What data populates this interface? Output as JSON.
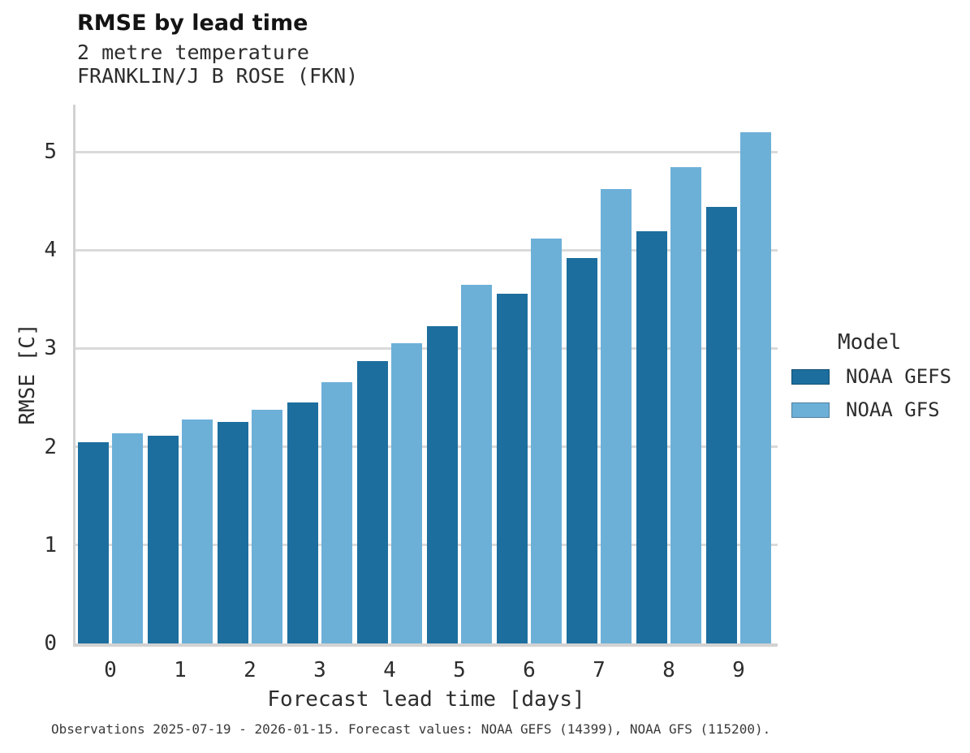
{
  "header": {
    "title": "RMSE by lead time",
    "subtitle_line1": "2 metre temperature",
    "subtitle_line2": "FRANKLIN/J B ROSE (FKN)"
  },
  "legend": {
    "title": "Model"
  },
  "footer": {
    "text": "Observations 2025-07-19 - 2026-01-15. Forecast values: NOAA GEFS (14399), NOAA GFS (115200)."
  },
  "colors": {
    "gefs_bar": "#1c6e9e",
    "gfs_bar": "#6cb0d8",
    "gridline": "#dadada",
    "axis_line": "#d2d2d2",
    "text": "#2d2d2d"
  },
  "chart_data": {
    "type": "bar",
    "title": "RMSE by lead time",
    "subtitle": [
      "2 metre temperature",
      "FRANKLIN/J B ROSE (FKN)"
    ],
    "xlabel": "Forecast lead time [days]",
    "ylabel": "RMSE [C]",
    "categories": [
      "0",
      "1",
      "2",
      "3",
      "4",
      "5",
      "6",
      "7",
      "8",
      "9"
    ],
    "series": [
      {
        "name": "NOAA GEFS",
        "color": "#1c6e9e",
        "values": [
          2.05,
          2.11,
          2.25,
          2.45,
          2.87,
          3.23,
          3.56,
          3.92,
          4.19,
          4.44
        ]
      },
      {
        "name": "NOAA GFS",
        "color": "#6cb0d8",
        "values": [
          2.14,
          2.28,
          2.38,
          2.66,
          3.05,
          3.65,
          4.12,
          4.62,
          4.84,
          5.2
        ]
      }
    ],
    "ylim": [
      0,
      5.48
    ],
    "yticks": [
      0,
      1,
      2,
      3,
      4,
      5
    ],
    "grid": "horizontal",
    "legend_position": "right",
    "legend_title": "Model",
    "caption": "Observations 2025-07-19 - 2026-01-15. Forecast values: NOAA GEFS (14399), NOAA GFS (115200)."
  }
}
